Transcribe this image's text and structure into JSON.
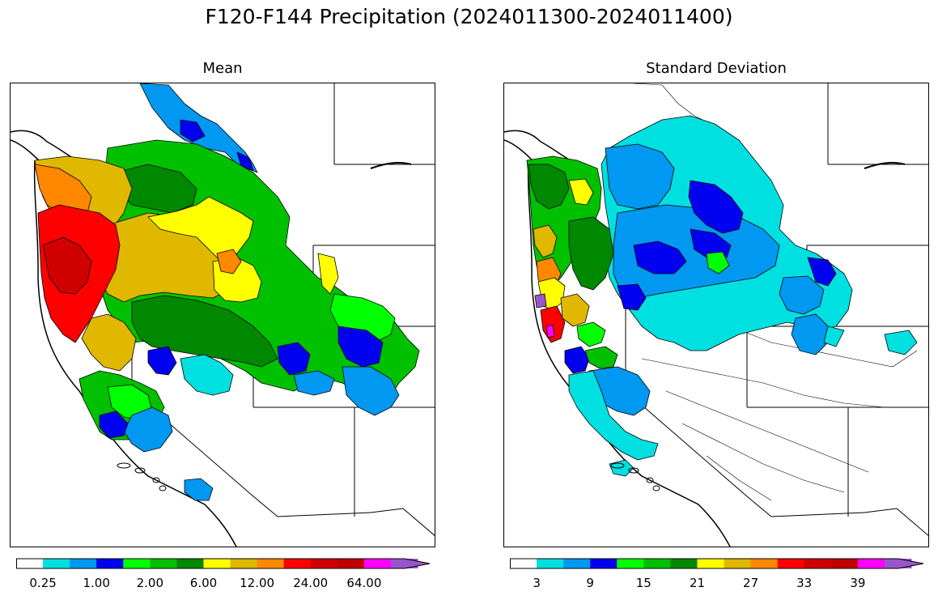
{
  "figure": {
    "title": "F120-F144 Precipitation (2024011300-2024011400)"
  },
  "panels": [
    {
      "id": "mean",
      "title": "Mean",
      "colorbar": {
        "colors": [
          "#ffffff",
          "#00e0e0",
          "#0098f0",
          "#0000f0",
          "#00ff00",
          "#00c000",
          "#008800",
          "#ffff00",
          "#e0b800",
          "#ff8800",
          "#ff0000",
          "#d00000",
          "#c00000",
          "#ff00ff",
          "#9955cc"
        ],
        "tick_labels": [
          "0.25",
          "1.00",
          "2.00",
          "6.00",
          "12.00",
          "24.00",
          "64.00"
        ],
        "extend": "max"
      }
    },
    {
      "id": "std",
      "title": "Standard Deviation",
      "colorbar": {
        "colors": [
          "#ffffff",
          "#00e0e0",
          "#0098f0",
          "#0000f0",
          "#00ff00",
          "#00c000",
          "#008800",
          "#ffff00",
          "#e0b800",
          "#ff8800",
          "#ff0000",
          "#d00000",
          "#c00000",
          "#ff00ff",
          "#9955cc"
        ],
        "tick_labels": [
          "3",
          "9",
          "15",
          "21",
          "27",
          "33",
          "39"
        ],
        "extend": "max"
      }
    }
  ]
}
